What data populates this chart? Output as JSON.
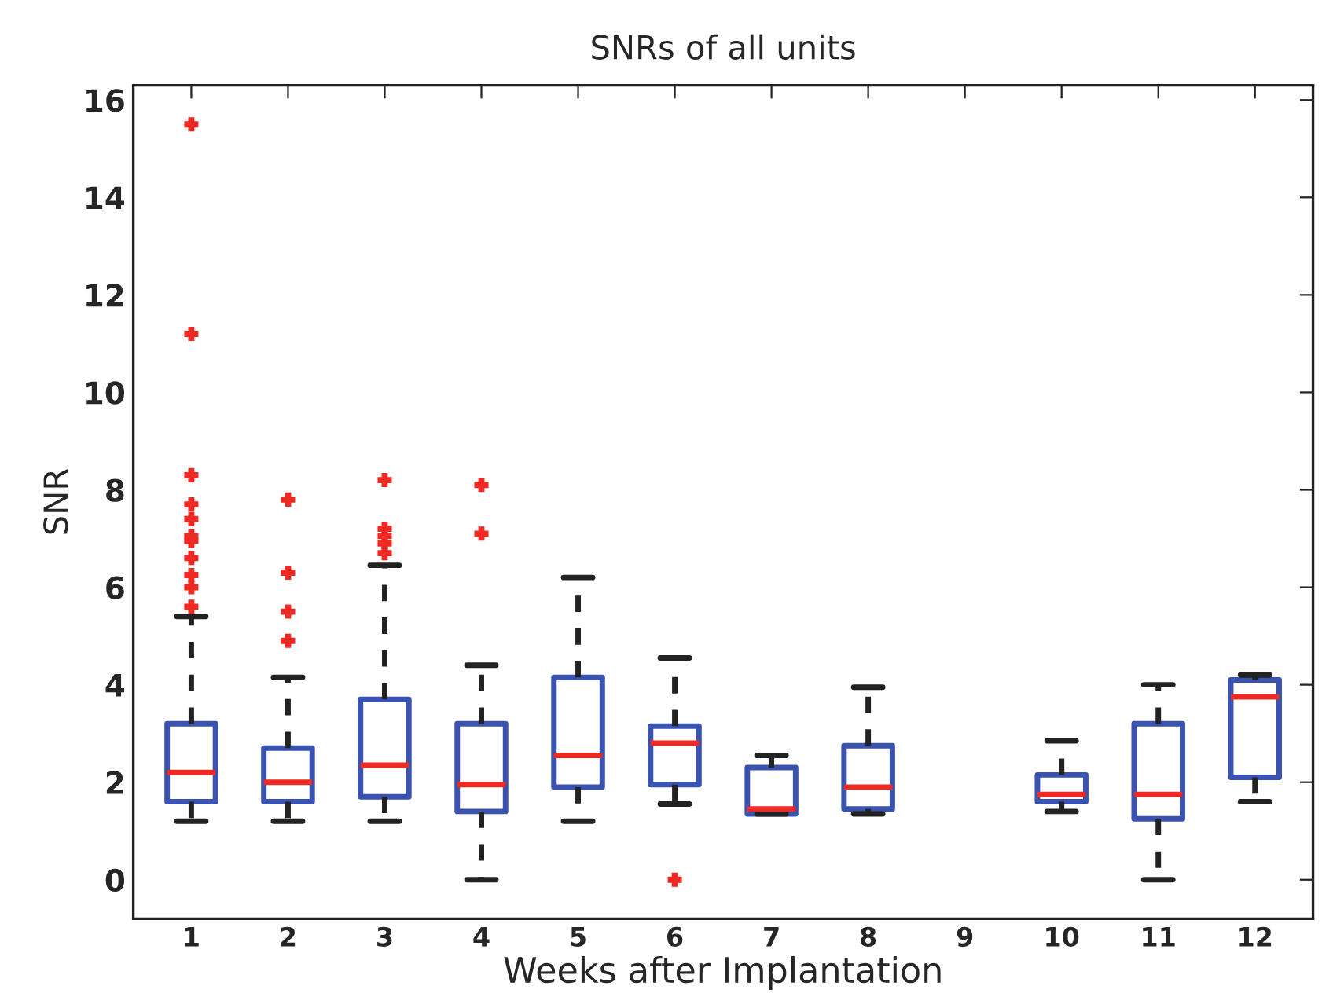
{
  "chart_data": {
    "type": "box",
    "title": "SNRs of all units",
    "xlabel": "Weeks after Implantation",
    "ylabel": "SNR",
    "categories": [
      "1",
      "2",
      "3",
      "4",
      "5",
      "6",
      "7",
      "8",
      "9",
      "10",
      "11",
      "12"
    ],
    "boxes": [
      {
        "low": 1.2,
        "q1": 1.6,
        "median": 2.2,
        "q3": 3.2,
        "high": 5.4,
        "outliers": [
          5.6,
          6.0,
          6.25,
          6.6,
          6.95,
          7.05,
          7.4,
          7.7,
          8.3,
          11.2,
          15.5
        ]
      },
      {
        "low": 1.2,
        "q1": 1.6,
        "median": 2.0,
        "q3": 2.7,
        "high": 4.15,
        "outliers": [
          4.9,
          5.5,
          6.3,
          7.8
        ]
      },
      {
        "low": 1.2,
        "q1": 1.7,
        "median": 2.35,
        "q3": 3.7,
        "high": 6.45,
        "outliers": [
          6.7,
          6.9,
          7.05,
          7.2,
          8.2
        ]
      },
      {
        "low": 0,
        "q1": 1.4,
        "median": 1.95,
        "q3": 3.2,
        "high": 4.4,
        "outliers": [
          7.1,
          8.1
        ]
      },
      {
        "low": 1.2,
        "q1": 1.9,
        "median": 2.55,
        "q3": 4.15,
        "high": 6.2
      },
      {
        "low": 1.55,
        "q1": 1.95,
        "median": 2.8,
        "q3": 3.15,
        "high": 4.55,
        "outliers": [
          0
        ]
      },
      {
        "low": 1.35,
        "q1": 1.35,
        "median": 1.45,
        "q3": 2.3,
        "high": 2.55
      },
      {
        "low": 1.35,
        "q1": 1.45,
        "median": 1.9,
        "q3": 2.75,
        "high": 3.95
      },
      null,
      {
        "low": 1.4,
        "q1": 1.6,
        "median": 1.75,
        "q3": 2.15,
        "high": 2.85
      },
      {
        "low": 0,
        "q1": 1.25,
        "median": 1.75,
        "q3": 3.2,
        "high": 4.0
      },
      {
        "low": 1.6,
        "q1": 2.1,
        "median": 3.75,
        "q3": 4.1,
        "high": 4.2
      }
    ],
    "ylim": [
      -0.8,
      16.3
    ],
    "yticks": [
      0,
      2,
      4,
      6,
      8,
      10,
      12,
      14,
      16
    ],
    "grid": false,
    "legend": false
  }
}
